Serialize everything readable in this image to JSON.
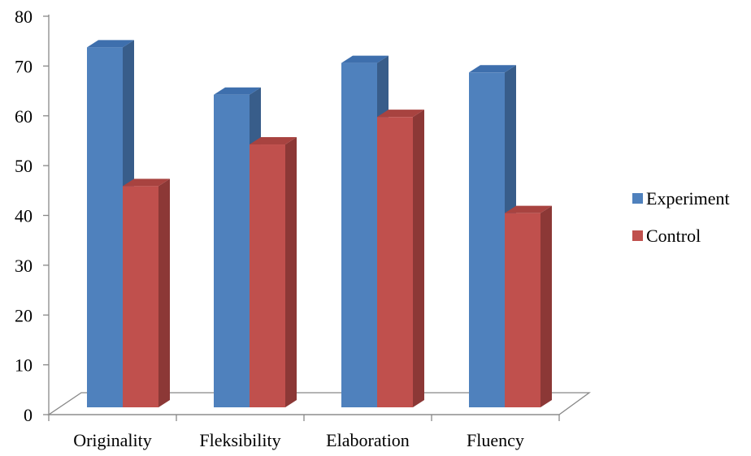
{
  "chart_data": {
    "type": "bar",
    "title": "",
    "xlabel": "",
    "ylabel": "",
    "categories": [
      "Originality",
      "Fleksibility",
      "Elaboration",
      "Fluency"
    ],
    "ylim": [
      0,
      80
    ],
    "yticks": [
      0,
      10,
      20,
      30,
      40,
      50,
      60,
      70,
      80
    ],
    "grid": false,
    "legend_position": "right",
    "three_d": true,
    "series": [
      {
        "name": "Experiment",
        "values": [
          76,
          66,
          72.7,
          70.7
        ],
        "color": "#4F81BD",
        "top_color": "#3E6FAD",
        "side_color": "#385D8A"
      },
      {
        "name": "Control",
        "values": [
          46.7,
          55.5,
          61.3,
          41
        ],
        "color": "#C0504D",
        "top_color": "#A84340",
        "side_color": "#8C3836"
      }
    ]
  }
}
